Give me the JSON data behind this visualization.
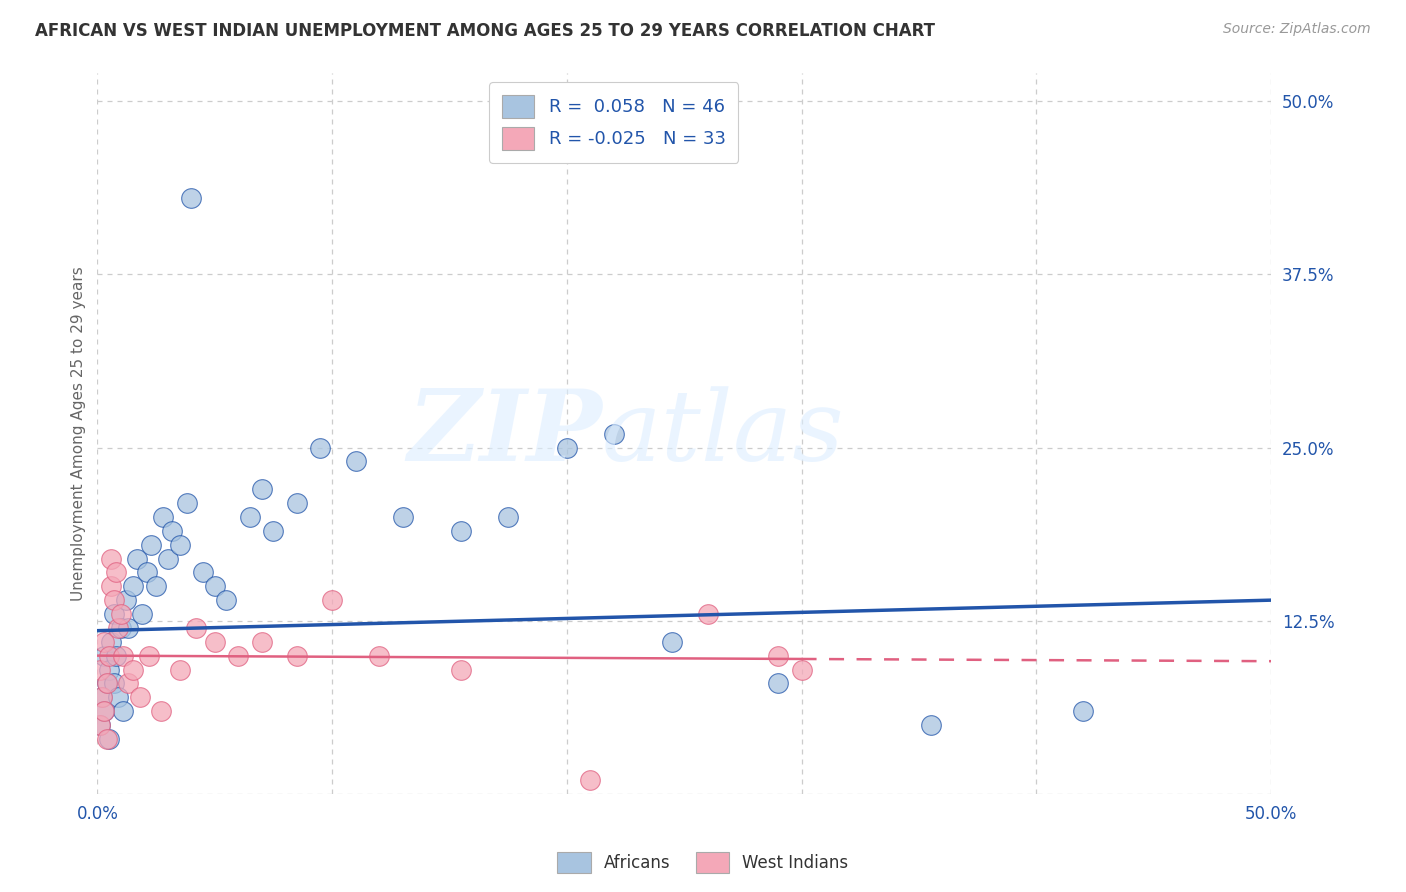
{
  "title": "AFRICAN VS WEST INDIAN UNEMPLOYMENT AMONG AGES 25 TO 29 YEARS CORRELATION CHART",
  "source": "Source: ZipAtlas.com",
  "ylabel": "Unemployment Among Ages 25 to 29 years",
  "xlim": [
    0.0,
    0.5
  ],
  "ylim": [
    0.0,
    0.52
  ],
  "x_ticks": [
    0.0,
    0.1,
    0.2,
    0.3,
    0.4,
    0.5
  ],
  "x_tick_labels_show": [
    "0.0%",
    "",
    "",
    "",
    "",
    "50.0%"
  ],
  "y_ticks_right": [
    0.5,
    0.375,
    0.25,
    0.125,
    0.0
  ],
  "y_tick_labels_right": [
    "50.0%",
    "37.5%",
    "25.0%",
    "12.5%",
    ""
  ],
  "african_R": 0.058,
  "african_N": 46,
  "westindian_R": -0.025,
  "westindian_N": 33,
  "african_color": "#a8c4e0",
  "westindian_color": "#f4a8b8",
  "african_line_color": "#2255aa",
  "westindian_line_color": "#e06080",
  "background_color": "#ffffff",
  "grid_color": "#cccccc",
  "title_color": "#333333",
  "legend_labels": [
    "Africans",
    "West Indians"
  ],
  "africans_x": [
    0.001,
    0.002,
    0.003,
    0.003,
    0.004,
    0.005,
    0.005,
    0.006,
    0.007,
    0.007,
    0.008,
    0.009,
    0.01,
    0.011,
    0.012,
    0.013,
    0.015,
    0.017,
    0.019,
    0.021,
    0.023,
    0.025,
    0.028,
    0.03,
    0.032,
    0.035,
    0.038,
    0.04,
    0.045,
    0.05,
    0.055,
    0.065,
    0.07,
    0.075,
    0.085,
    0.095,
    0.11,
    0.13,
    0.155,
    0.175,
    0.2,
    0.22,
    0.245,
    0.29,
    0.355,
    0.42
  ],
  "africans_y": [
    0.05,
    0.07,
    0.06,
    0.1,
    0.08,
    0.09,
    0.04,
    0.11,
    0.08,
    0.13,
    0.1,
    0.07,
    0.12,
    0.06,
    0.14,
    0.12,
    0.15,
    0.17,
    0.13,
    0.16,
    0.18,
    0.15,
    0.2,
    0.17,
    0.19,
    0.18,
    0.21,
    0.43,
    0.16,
    0.15,
    0.14,
    0.2,
    0.22,
    0.19,
    0.21,
    0.25,
    0.24,
    0.2,
    0.19,
    0.2,
    0.25,
    0.26,
    0.11,
    0.08,
    0.05,
    0.06
  ],
  "westindians_x": [
    0.001,
    0.001,
    0.002,
    0.003,
    0.003,
    0.004,
    0.004,
    0.005,
    0.006,
    0.006,
    0.007,
    0.008,
    0.009,
    0.01,
    0.011,
    0.013,
    0.015,
    0.018,
    0.022,
    0.027,
    0.035,
    0.042,
    0.05,
    0.06,
    0.07,
    0.085,
    0.1,
    0.12,
    0.155,
    0.21,
    0.26,
    0.29,
    0.3
  ],
  "westindians_y": [
    0.05,
    0.09,
    0.07,
    0.06,
    0.11,
    0.08,
    0.04,
    0.1,
    0.15,
    0.17,
    0.14,
    0.16,
    0.12,
    0.13,
    0.1,
    0.08,
    0.09,
    0.07,
    0.1,
    0.06,
    0.09,
    0.12,
    0.11,
    0.1,
    0.11,
    0.1,
    0.14,
    0.1,
    0.09,
    0.01,
    0.13,
    0.1,
    0.09
  ]
}
